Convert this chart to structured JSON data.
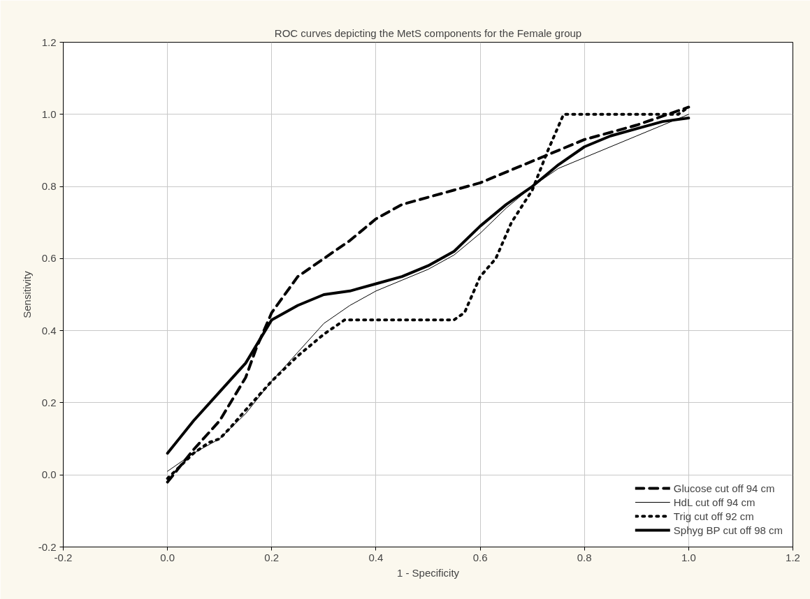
{
  "chart_data": {
    "type": "line",
    "title": "ROC curves depicting the MetS components for the Female group",
    "xlabel": "1 - Specificity",
    "ylabel": "Sensitivity",
    "xlim": [
      -0.2,
      1.2
    ],
    "xticks": [
      -0.2,
      {
        "value": 0,
        "label": "0.0"
      },
      0.2,
      0.4,
      0.6,
      0.8,
      {
        "value": 1,
        "label": "1.0"
      },
      1.2
    ],
    "ylim": [
      -0.2,
      1.2
    ],
    "yticks": [
      -0.2,
      {
        "value": 0,
        "label": "0.0"
      },
      0.2,
      0.4,
      0.6,
      0.8,
      {
        "value": 1,
        "label": "1.0"
      },
      1.2
    ],
    "grid": true,
    "legend": "bottom right",
    "marker": "none",
    "series": [
      {
        "name": "Glucose cut off 94 cm",
        "color": "#000000",
        "line_style": "dashed",
        "x": [
          0,
          0.05,
          0.1,
          0.15,
          0.17,
          0.2,
          0.25,
          0.3,
          0.35,
          0.4,
          0.45,
          0.5,
          0.55,
          0.6,
          0.7,
          0.8,
          0.9,
          1.0
        ],
        "values": [
          -0.02,
          0.07,
          0.15,
          0.27,
          0.35,
          0.45,
          0.55,
          0.6,
          0.65,
          0.71,
          0.75,
          0.77,
          0.79,
          0.81,
          0.87,
          0.93,
          0.97,
          1.02
        ]
      },
      {
        "name": "HdL cut off 94 cm",
        "color": "#000000",
        "line_style": "solid",
        "x": [
          0,
          0.05,
          0.1,
          0.15,
          0.2,
          0.25,
          0.3,
          0.35,
          0.4,
          0.45,
          0.5,
          0.55,
          0.6,
          0.65,
          0.7,
          0.75,
          0.8,
          0.9,
          1.0
        ],
        "values": [
          0.01,
          0.06,
          0.1,
          0.17,
          0.26,
          0.34,
          0.42,
          0.47,
          0.51,
          0.54,
          0.57,
          0.61,
          0.67,
          0.74,
          0.8,
          0.85,
          0.88,
          0.94,
          1.0
        ]
      },
      {
        "name": "Trig cut off 92 cm",
        "color": "#000000",
        "line_style": "dotted",
        "x": [
          0,
          0.05,
          0.08,
          0.1,
          0.12,
          0.15,
          0.2,
          0.25,
          0.3,
          0.34,
          0.55,
          0.57,
          0.6,
          0.63,
          0.66,
          0.7,
          0.73,
          0.76,
          0.98,
          1.0
        ],
        "values": [
          -0.01,
          0.06,
          0.09,
          0.1,
          0.13,
          0.18,
          0.26,
          0.33,
          0.39,
          0.43,
          0.43,
          0.45,
          0.55,
          0.6,
          0.7,
          0.79,
          0.9,
          1.0,
          1.0,
          1.02
        ]
      },
      {
        "name": "Sphyg BP cut off 98 cm",
        "color": "#000000",
        "line_style": "solid",
        "x": [
          0,
          0.05,
          0.1,
          0.15,
          0.2,
          0.25,
          0.3,
          0.35,
          0.4,
          0.45,
          0.5,
          0.55,
          0.6,
          0.65,
          0.7,
          0.75,
          0.8,
          0.85,
          0.9,
          0.95,
          1.0
        ],
        "values": [
          0.06,
          0.15,
          0.23,
          0.31,
          0.43,
          0.47,
          0.5,
          0.51,
          0.53,
          0.55,
          0.58,
          0.62,
          0.69,
          0.75,
          0.8,
          0.86,
          0.91,
          0.94,
          0.96,
          0.98,
          0.99
        ]
      }
    ]
  }
}
